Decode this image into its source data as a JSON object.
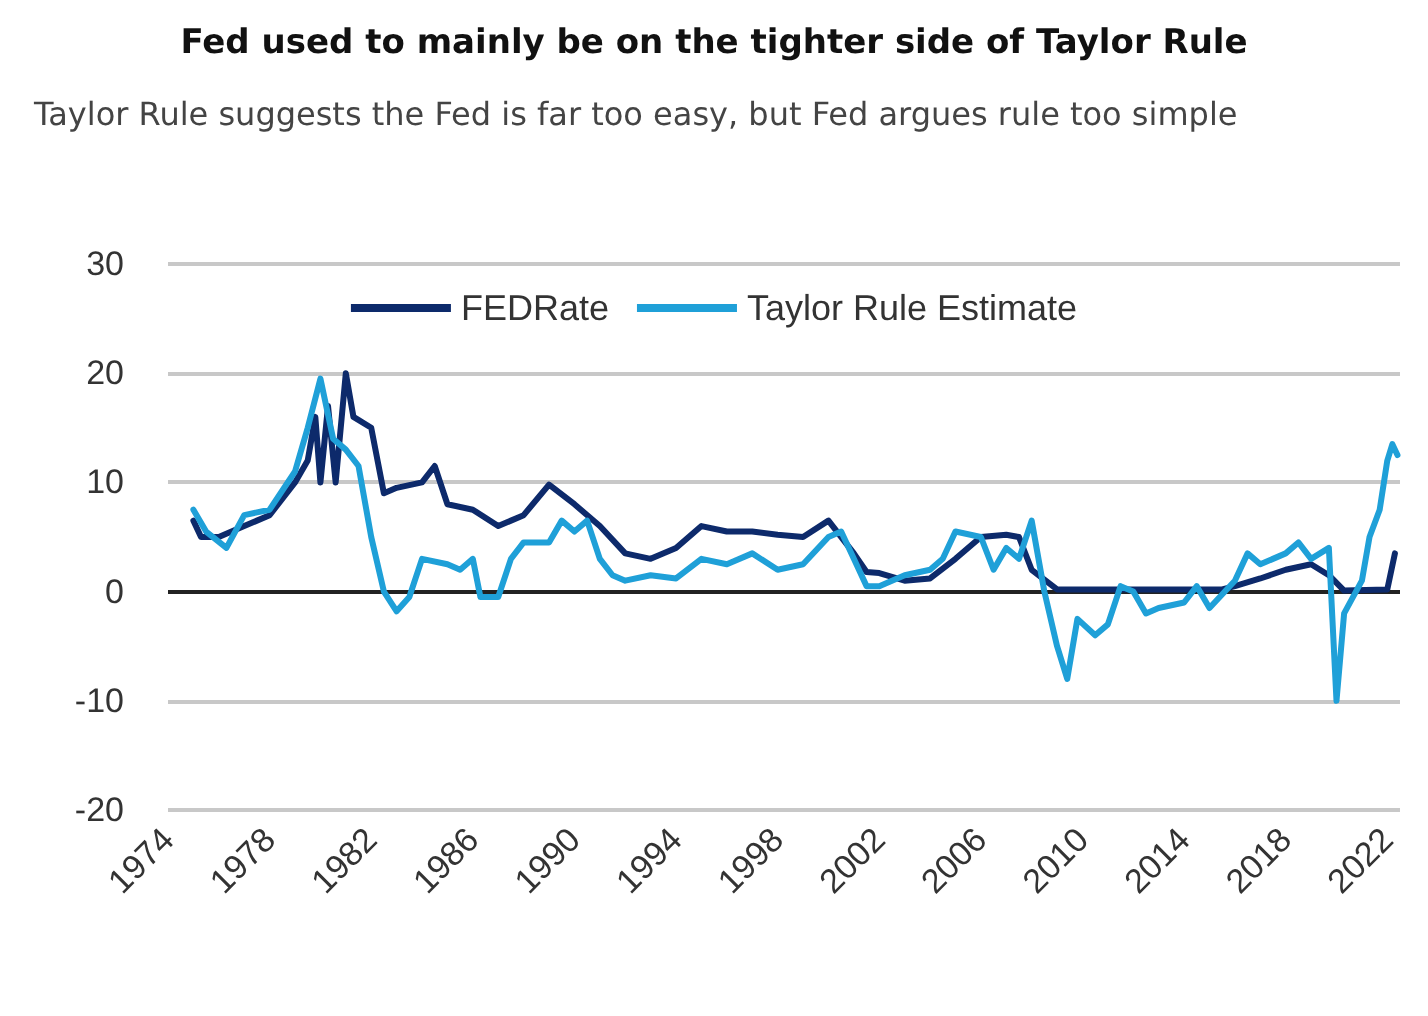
{
  "chart_data": {
    "type": "line",
    "title": "Fed used to mainly be on the tighter side of Taylor Rule",
    "subtitle": "Taylor Rule suggests the Fed is far too easy, but Fed argues rule too simple",
    "xlim": [
      1974,
      2022.5
    ],
    "xticks": [
      1974,
      1978,
      1982,
      1986,
      1990,
      1994,
      1998,
      2002,
      2006,
      2010,
      2014,
      2018,
      2022
    ],
    "ylim": [
      -20,
      30
    ],
    "yticks": [
      -20,
      -10,
      0,
      10,
      20,
      30
    ],
    "grid": "y",
    "legend": "top",
    "marker": "none",
    "line_style": "solid",
    "series": [
      {
        "name": "FEDRate",
        "color": "#0d2a6b",
        "x": [
          1975,
          1975.3,
          1976,
          1977,
          1978,
          1979,
          1979.5,
          1979.8,
          1980,
          1980.3,
          1980.6,
          1981,
          1981.3,
          1982,
          1982.5,
          1983,
          1984,
          1984.5,
          1985,
          1986,
          1987,
          1988,
          1989,
          1990,
          1991,
          1992,
          1993,
          1994,
          1995,
          1996,
          1997,
          1998,
          1999,
          2000,
          2001,
          2001.5,
          2002,
          2003,
          2004,
          2005,
          2006,
          2007,
          2007.5,
          2008,
          2009,
          2015.5,
          2016,
          2017,
          2018,
          2019,
          2019.7,
          2020.3,
          2022,
          2022.3
        ],
        "values": [
          6.5,
          5,
          5,
          6,
          7,
          10,
          12,
          16,
          10,
          17,
          10,
          20,
          16,
          15,
          9,
          9.5,
          10,
          11.5,
          8,
          7.5,
          6,
          7,
          9.8,
          8,
          6,
          3.5,
          3,
          4,
          6,
          5.5,
          5.5,
          5.2,
          5,
          6.5,
          3.5,
          1.8,
          1.7,
          1,
          1.2,
          3,
          5,
          5.2,
          5,
          2,
          0.2,
          0.2,
          0.5,
          1.2,
          2,
          2.5,
          1.5,
          0.1,
          0.2,
          3.5
        ]
      },
      {
        "name": "Taylor Rule Estimate",
        "color": "#1fa0d8",
        "x": [
          1975,
          1975.5,
          1976.3,
          1977,
          1978,
          1979,
          1979.5,
          1980,
          1980.5,
          1981,
          1981.5,
          1982,
          1982.5,
          1983,
          1983.5,
          1984,
          1985,
          1985.5,
          1986,
          1986.3,
          1987,
          1987.5,
          1988,
          1989,
          1989.5,
          1990,
          1990.5,
          1991,
          1991.5,
          1992,
          1993,
          1994,
          1995,
          1996,
          1997,
          1998,
          1999,
          2000,
          2000.5,
          2001,
          2001.5,
          2002,
          2003,
          2004,
          2004.5,
          2005,
          2006,
          2006.5,
          2007,
          2007.5,
          2008,
          2008.5,
          2009,
          2009.4,
          2009.8,
          2010.5,
          2011,
          2011.5,
          2012,
          2012.5,
          2013,
          2014,
          2014.5,
          2015,
          2016,
          2016.5,
          2017,
          2018,
          2018.5,
          2019,
          2019.7,
          2020,
          2020.3,
          2021,
          2021.3,
          2021.7,
          2022,
          2022.2,
          2022.4
        ],
        "values": [
          7.5,
          5.5,
          4,
          7,
          7.5,
          11,
          15,
          19.5,
          14,
          13,
          11.5,
          5,
          0,
          -1.8,
          -0.5,
          3,
          2.5,
          2,
          3,
          -0.5,
          -0.5,
          3,
          4.5,
          4.5,
          6.5,
          5.5,
          6.5,
          3,
          1.5,
          1,
          1.5,
          1.2,
          3,
          2.5,
          3.5,
          2,
          2.5,
          5,
          5.5,
          3,
          0.5,
          0.5,
          1.5,
          2,
          3,
          5.5,
          5,
          2,
          4,
          3,
          6.5,
          0,
          -5,
          -8,
          -2.5,
          -4,
          -3,
          0.5,
          0,
          -2,
          -1.5,
          -1,
          0.5,
          -1.5,
          1,
          3.5,
          2.5,
          3.5,
          4.5,
          3,
          4,
          -10,
          -2,
          1,
          5,
          7.5,
          12,
          13.5,
          12.5
        ]
      }
    ]
  }
}
